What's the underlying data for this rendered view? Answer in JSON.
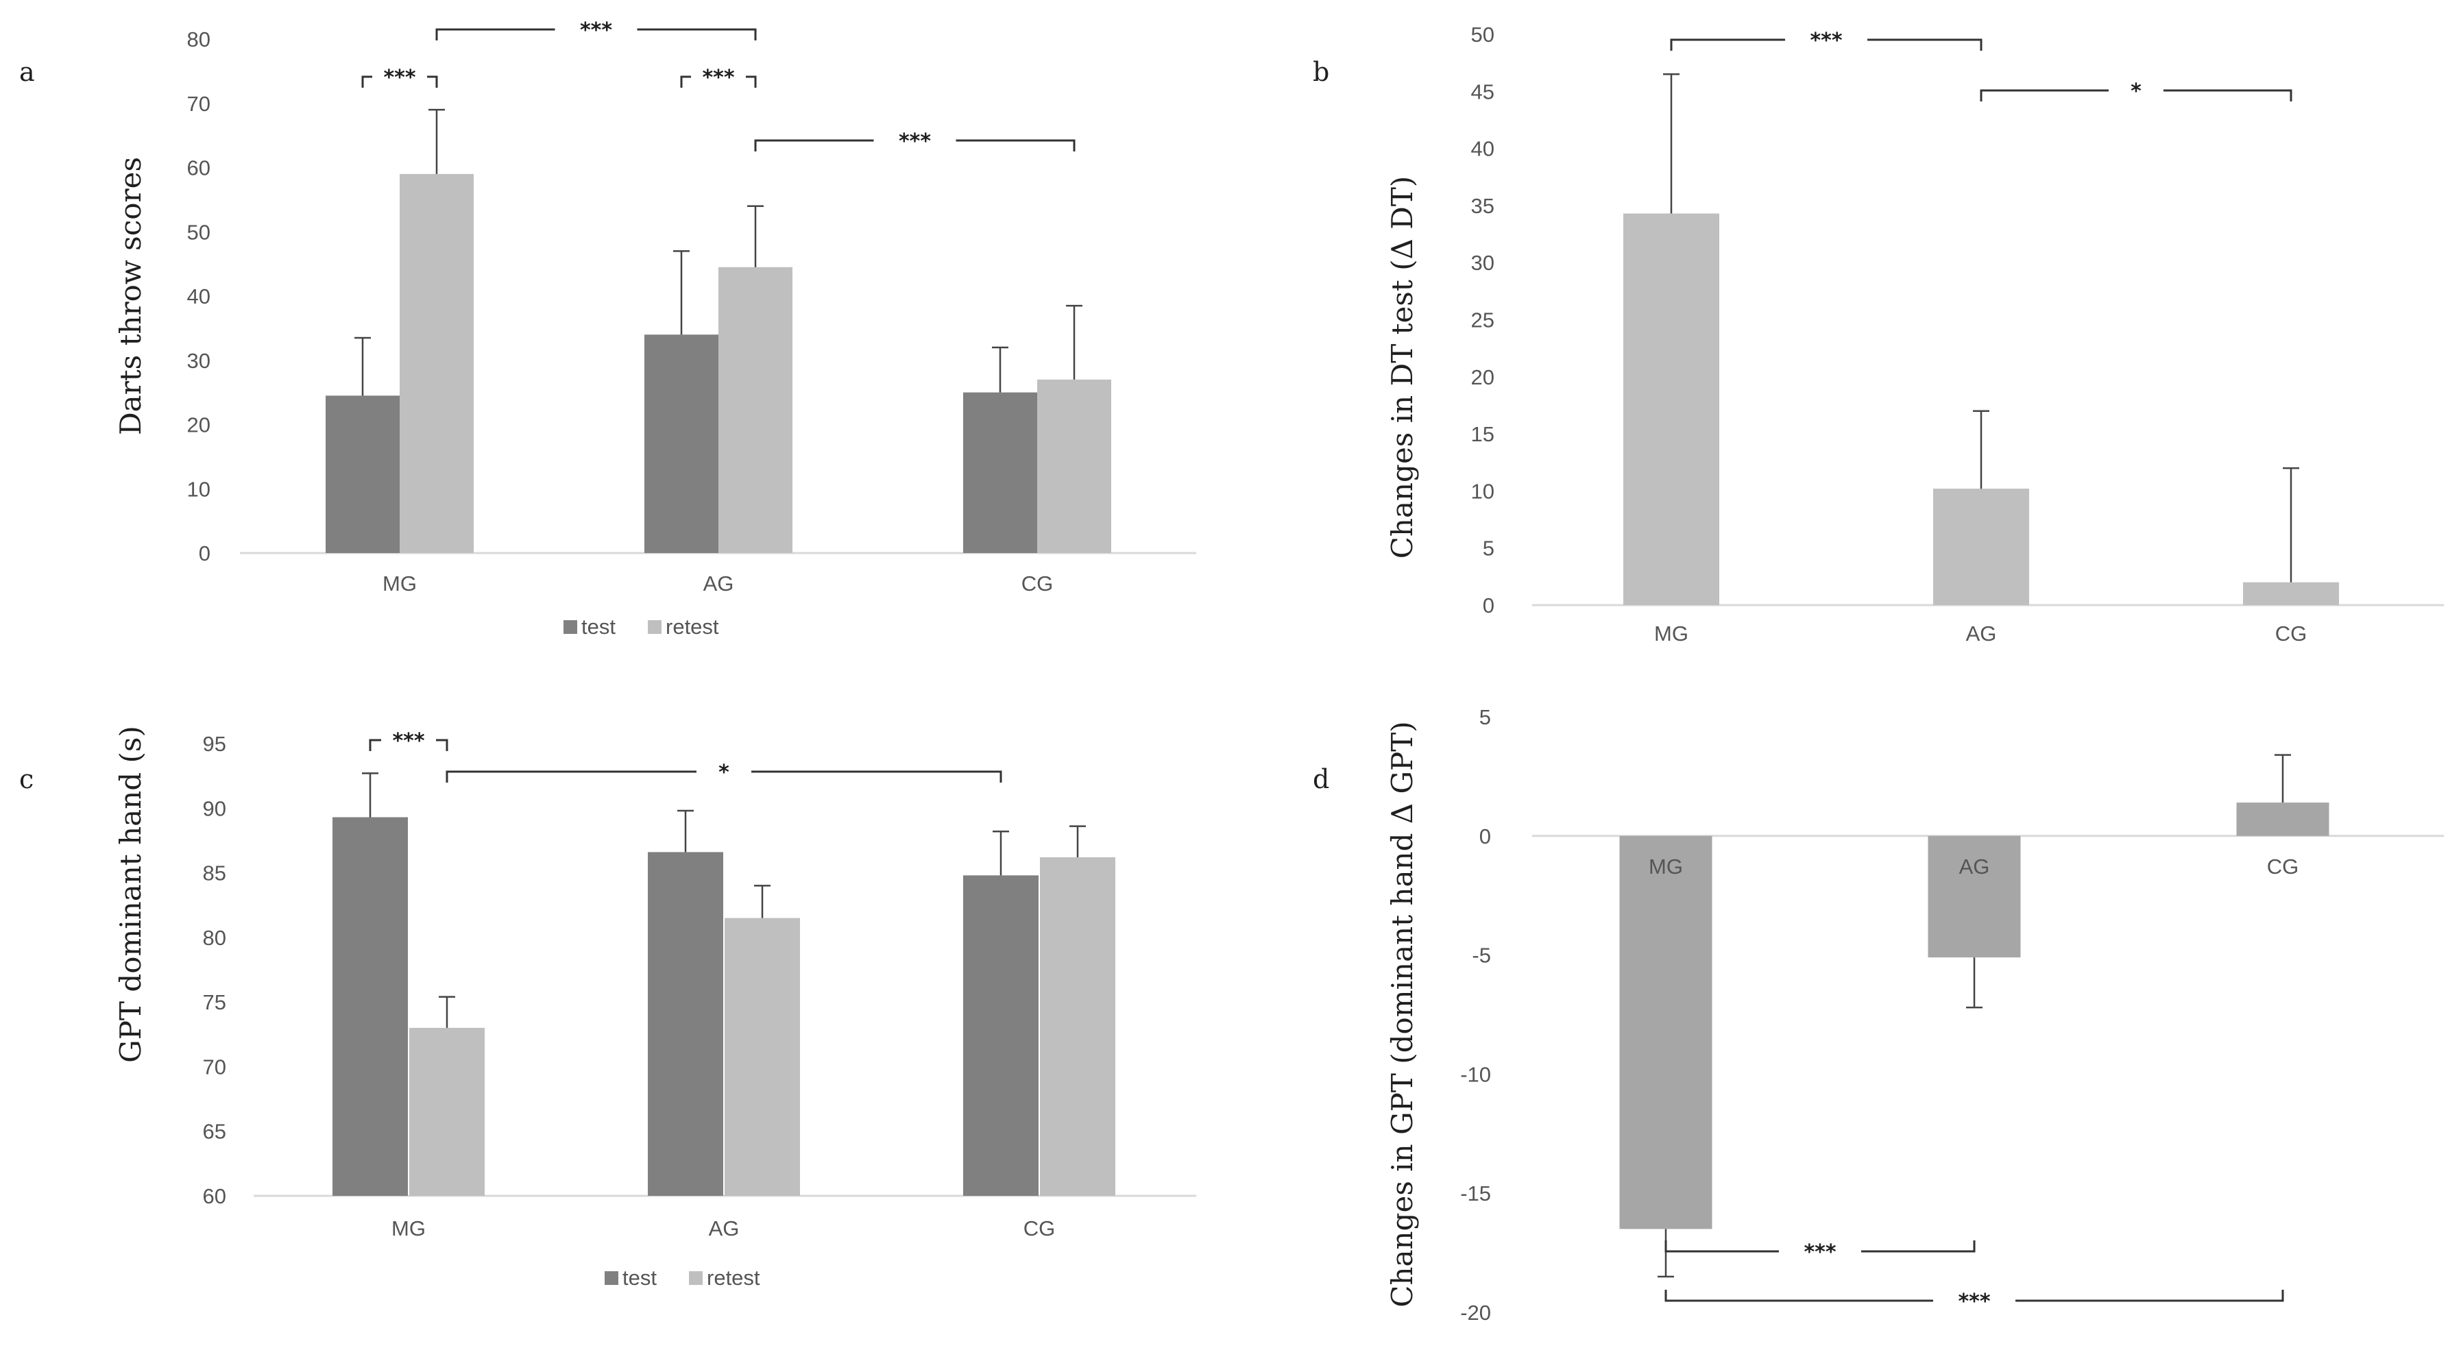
{
  "chart_data": [
    {
      "id": "a",
      "type": "bar",
      "panel_label": "a",
      "ylabel": "Darts throw scores",
      "categories": [
        "MG",
        "AG",
        "CG"
      ],
      "series": [
        {
          "name": "test",
          "values": [
            24.5,
            34,
            25
          ],
          "errors": [
            9,
            13,
            7
          ],
          "color": "#808080"
        },
        {
          "name": "retest",
          "values": [
            59,
            44.5,
            27
          ],
          "errors": [
            10,
            9.5,
            11.5
          ],
          "color": "#bfbfbf"
        }
      ],
      "ylim": [
        0,
        80
      ],
      "yticks": [
        0,
        10,
        20,
        30,
        40,
        50,
        60,
        70,
        80
      ],
      "legend": "bottom",
      "significance": [
        {
          "label": "***",
          "from": "MG.test",
          "to": "MG.retest",
          "level": 75
        },
        {
          "label": "***",
          "from": "MG.retest",
          "to": "AG.retest",
          "level": 81.5
        },
        {
          "label": "***",
          "from": "AG.test",
          "to": "AG.retest",
          "level": 75
        },
        {
          "label": "***",
          "from": "AG.retest",
          "to": "CG.retest",
          "level": 64.5
        }
      ]
    },
    {
      "id": "b",
      "type": "bar",
      "panel_label": "b",
      "ylabel": "Changes in DT test (Δ DT)",
      "categories": [
        "MG",
        "AG",
        "CG"
      ],
      "series": [
        {
          "name": "Δ DT",
          "values": [
            34.3,
            10.2,
            2
          ],
          "errors": [
            12.2,
            6.8,
            10
          ],
          "color": "#bfbfbf"
        }
      ],
      "ylim": [
        0,
        50
      ],
      "yticks": [
        0,
        5,
        10,
        15,
        20,
        25,
        30,
        35,
        40,
        45,
        50
      ],
      "significance": [
        {
          "label": "***",
          "from": "MG",
          "to": "AG",
          "level": 49
        },
        {
          "label": "*",
          "from": "AG",
          "to": "CG",
          "level": 44.5
        }
      ]
    },
    {
      "id": "c",
      "type": "bar",
      "panel_label": "c",
      "ylabel": "GPT dominant hand (s)",
      "categories": [
        "MG",
        "AG",
        "CG"
      ],
      "series": [
        {
          "name": "test",
          "values": [
            89.3,
            86.6,
            84.8
          ],
          "errors": [
            3.4,
            3.2,
            3.4
          ],
          "color": "#808080"
        },
        {
          "name": "retest",
          "values": [
            73,
            81.5,
            86.2
          ],
          "errors": [
            2.4,
            2.5,
            2.4
          ],
          "color": "#bfbfbf"
        }
      ],
      "ylim": [
        60,
        95
      ],
      "yticks": [
        60,
        65,
        70,
        75,
        80,
        85,
        90,
        95
      ],
      "legend": "bottom",
      "significance": [
        {
          "label": "***",
          "from": "MG.test",
          "to": "MG.retest",
          "level": 94.5
        },
        {
          "label": "*",
          "from": "MG.retest",
          "to": "CG.test",
          "level": 92.2
        }
      ]
    },
    {
      "id": "d",
      "type": "bar",
      "panel_label": "d",
      "ylabel": "Changes in GPT (dominant hand  Δ GPT)",
      "categories": [
        "MG",
        "AG",
        "CG"
      ],
      "series": [
        {
          "name": "Δ GPT",
          "values": [
            -16.5,
            -5.1,
            1.4
          ],
          "errors": [
            2,
            2.1,
            2
          ],
          "color": "#a6a6a6"
        }
      ],
      "ylim": [
        -20,
        5
      ],
      "yticks": [
        -20,
        -15,
        -10,
        -5,
        0,
        5
      ],
      "significance": [
        {
          "label": "***",
          "from": "MG",
          "to": "AG",
          "level": -17.3
        },
        {
          "label": "***",
          "from": "MG",
          "to": "CG",
          "level": -19.4
        }
      ]
    }
  ]
}
